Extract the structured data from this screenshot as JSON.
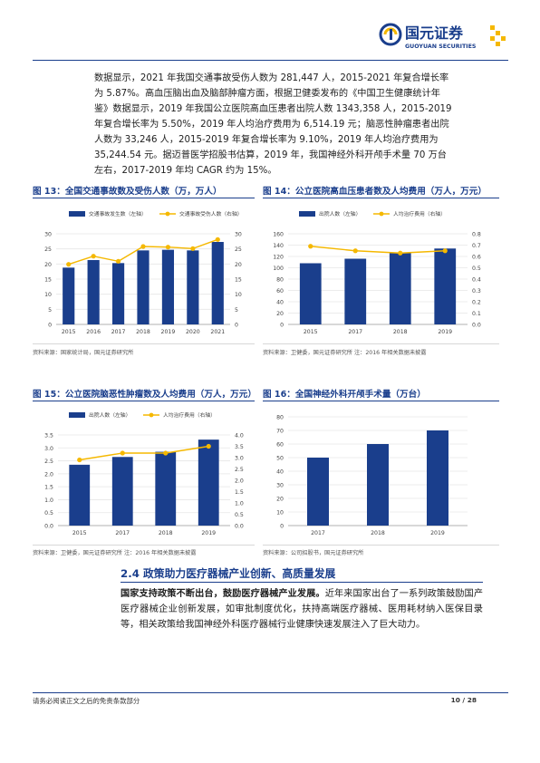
{
  "header": {
    "brand_cn": "国元证券",
    "brand_en": "GUOYUAN SECURITIES"
  },
  "intro": {
    "lines": [
      "数据显示，2021 年我国交通事故受伤人数为 281,447 人，2015-2021 年复合增长率",
      "为 5.87%。高血压脑出血及脑部肿瘤方面，根据卫健委发布的《中国卫生健康统计年",
      "鉴》数据显示，2019 年我国公立医院高血压患者出院人数 1343,358 人，2015-2019",
      "年复合增长率为 5.50%，2019 年人均治疗费用为 6,514.19 元；脑恶性肿瘤患者出院",
      "人数为 33,246 人，2015-2019 年复合增长率为 9.10%，2019 年人均治疗费用为",
      "35,244.54 元。据迈普医学招股书估算，2019 年，我国神经外科开颅手术量 70 万台",
      "左右，2017-2019 年均 CAGR 约为 15%。"
    ]
  },
  "figures": [
    {
      "title": "图 13：全国交通事故数及受伤人数（万，万人）",
      "source": "资料来源：国家统计局，国元证券研究所",
      "chart_data": {
        "type": "bar",
        "categories": [
          "2015",
          "2016",
          "2017",
          "2018",
          "2019",
          "2020",
          "2021"
        ],
        "series": [
          {
            "name": "交通事故发生数（左轴）",
            "type": "bar",
            "axis": "left",
            "values": [
              18.8,
              21.3,
              20.3,
              24.5,
              24.7,
              24.5,
              27.3
            ]
          },
          {
            "name": "交通事故受伤人数（右轴）",
            "type": "line",
            "axis": "right",
            "values": [
              19.9,
              22.6,
              20.9,
              25.8,
              25.6,
              25.1,
              28.1
            ]
          }
        ],
        "ylim_left": [
          0,
          30
        ],
        "yticks_left": [
          0,
          5,
          10,
          15,
          20,
          25,
          30
        ],
        "ylim_right": [
          0,
          30
        ],
        "yticks_right": [
          0,
          5,
          10,
          15,
          20,
          25,
          30
        ]
      }
    },
    {
      "title": "图 14：公立医院高血压患者数及人均费用（万人，万元）",
      "source": "资料来源：卫健委，国元证券研究所  注：2016 年相关数据未披露",
      "chart_data": {
        "type": "bar",
        "categories": [
          "2015",
          "2017",
          "2018",
          "2019"
        ],
        "series": [
          {
            "name": "出院人数（左轴）",
            "type": "bar",
            "axis": "left",
            "values": [
              108,
              116,
              127,
              134
            ]
          },
          {
            "name": "人均治疗费用（右轴）",
            "type": "line",
            "axis": "right",
            "values": [
              0.69,
              0.65,
              0.63,
              0.65
            ]
          }
        ],
        "ylim_left": [
          0,
          160
        ],
        "yticks_left": [
          0,
          20,
          40,
          60,
          80,
          100,
          120,
          140,
          160
        ],
        "ylim_right": [
          0,
          0.8
        ],
        "yticks_right": [
          0,
          0.1,
          0.2,
          0.3,
          0.4,
          0.5,
          0.6,
          0.7,
          0.8
        ]
      }
    },
    {
      "title": "图 15：公立医院脑恶性肿瘤数及人均费用（万人，万元）",
      "source": "资料来源：卫健委，国元证券研究所  注：2016 年相关数据未披露",
      "chart_data": {
        "type": "bar",
        "categories": [
          "2015",
          "2017",
          "2018",
          "2019"
        ],
        "series": [
          {
            "name": "出院人数（左轴）",
            "type": "bar",
            "axis": "left",
            "values": [
              2.35,
              2.65,
              2.85,
              3.32
            ]
          },
          {
            "name": "人均治疗费用（右轴）",
            "type": "line",
            "axis": "right",
            "values": [
              2.9,
              3.2,
              3.2,
              3.5
            ]
          }
        ],
        "ylim_left": [
          0,
          3.5
        ],
        "yticks_left": [
          0,
          0.5,
          1.0,
          1.5,
          2.0,
          2.5,
          3.0,
          3.5
        ],
        "ylim_right": [
          0,
          4.0
        ],
        "yticks_right": [
          0,
          0.5,
          1.0,
          1.5,
          2.0,
          2.5,
          3.0,
          3.5,
          4.0
        ]
      }
    },
    {
      "title": "图 16：全国神经外科开颅手术量（万台）",
      "source": "资料来源：公司招股书，国元证券研究所",
      "chart_data": {
        "type": "bar",
        "categories": [
          "2017",
          "2018",
          "2019"
        ],
        "series": [
          {
            "values": [
              50,
              60,
              70
            ]
          }
        ],
        "ylim_left": [
          0,
          80
        ],
        "yticks_left": [
          0,
          10,
          20,
          30,
          40,
          50,
          60,
          70,
          80
        ]
      }
    }
  ],
  "section": {
    "title": "2.4 政策助力医疗器械产业创新、高质量发展",
    "lead_bold": "国家支持政策不断出台，鼓励医疗器械产业发展。",
    "body": "近年来国家出台了一系列政策鼓励国产医疗器械企业创新发展，如审批制度优化，扶持高端医疗器械、医用耗材纳入医保目录等，相关政策给我国神经外科医疗器械行业健康快速发展注入了巨大动力。"
  },
  "footer": {
    "disclaimer": "请务必阅读正文之后的免责条款部分",
    "page": "10 / 28"
  },
  "colors": {
    "bar": "#1a3e8c",
    "line": "#f5b800",
    "title_blue": "#1a3e8c",
    "grid": "#e6e6e6"
  }
}
